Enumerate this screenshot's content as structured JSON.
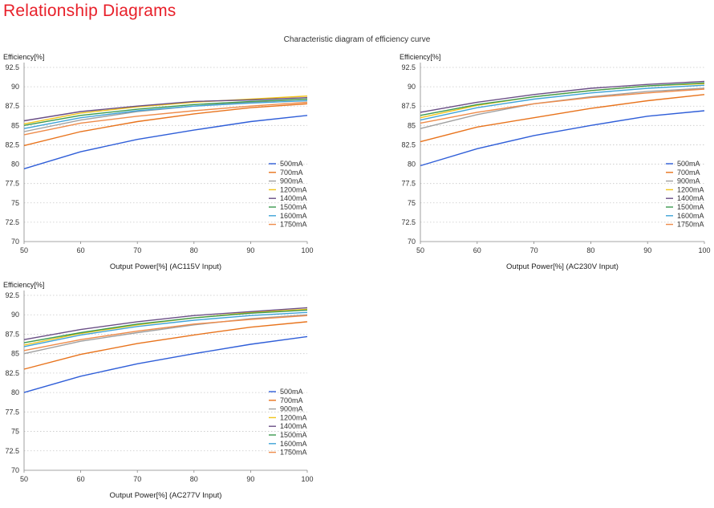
{
  "page": {
    "title": "Relationship Diagrams",
    "subtitle": "Characteristic diagram of efficiency curve"
  },
  "colors": {
    "500mA": "#2f5ed8",
    "700mA": "#e8731c",
    "900mA": "#a0a0a0",
    "1200mA": "#f0c419",
    "1400mA": "#6a4f86",
    "1500mA": "#3c9a4f",
    "1600mA": "#3fa3d7",
    "1750mA": "#ee8b4a"
  },
  "chart_data": [
    {
      "type": "line",
      "ylabel": "Efficiency[%]",
      "xlabel": "Output Power[%] (AC115V Input)",
      "xlim": [
        50,
        100
      ],
      "ylim": [
        70,
        92.5
      ],
      "xticks": [
        "50",
        "60",
        "70",
        "80",
        "90",
        "100"
      ],
      "yticks": [
        "70",
        "72.5",
        "75",
        "77.5",
        "80",
        "82.5",
        "85",
        "87.5",
        "90",
        "92.5"
      ],
      "grid": true,
      "legend": "bottom-right",
      "x": [
        50,
        60,
        70,
        80,
        90,
        100
      ],
      "series": [
        {
          "name": "500mA",
          "values": [
            79.4,
            81.6,
            83.2,
            84.4,
            85.5,
            86.3
          ]
        },
        {
          "name": "700mA",
          "values": [
            82.4,
            84.2,
            85.5,
            86.5,
            87.3,
            87.8
          ]
        },
        {
          "name": "900mA",
          "values": [
            84.2,
            85.7,
            86.8,
            87.5,
            88.0,
            88.4
          ]
        },
        {
          "name": "1200mA",
          "values": [
            85.2,
            86.6,
            87.4,
            88.0,
            88.4,
            88.8
          ]
        },
        {
          "name": "1400mA",
          "values": [
            85.6,
            86.8,
            87.5,
            88.1,
            88.3,
            88.6
          ]
        },
        {
          "name": "1500mA",
          "values": [
            85.0,
            86.3,
            87.1,
            87.7,
            88.1,
            88.4
          ]
        },
        {
          "name": "1600mA",
          "values": [
            84.6,
            86.0,
            86.9,
            87.5,
            87.9,
            88.2
          ]
        },
        {
          "name": "1750mA",
          "values": [
            83.8,
            85.3,
            86.2,
            86.9,
            87.5,
            88.0
          ]
        }
      ]
    },
    {
      "type": "line",
      "ylabel": "Efficiency[%]",
      "xlabel": "Output Power[%] (AC230V Input)",
      "xlim": [
        50,
        100
      ],
      "ylim": [
        70,
        92.5
      ],
      "xticks": [
        "50",
        "60",
        "70",
        "80",
        "90",
        "100"
      ],
      "yticks": [
        "70",
        "72.5",
        "75",
        "77.5",
        "80",
        "82.5",
        "85",
        "87.5",
        "90",
        "92.5"
      ],
      "grid": true,
      "legend": "bottom-right",
      "x": [
        50,
        60,
        70,
        80,
        90,
        100
      ],
      "series": [
        {
          "name": "500mA",
          "values": [
            79.8,
            82.0,
            83.7,
            85.0,
            86.2,
            86.9
          ]
        },
        {
          "name": "700mA",
          "values": [
            82.9,
            84.8,
            86.0,
            87.2,
            88.2,
            89.0
          ]
        },
        {
          "name": "900mA",
          "values": [
            84.6,
            86.4,
            87.8,
            88.7,
            89.4,
            89.8
          ]
        },
        {
          "name": "1200mA",
          "values": [
            86.0,
            87.6,
            88.7,
            89.5,
            90.1,
            90.4
          ]
        },
        {
          "name": "1400mA",
          "values": [
            86.7,
            88.0,
            89.0,
            89.8,
            90.3,
            90.7
          ]
        },
        {
          "name": "1500mA",
          "values": [
            86.3,
            87.7,
            88.7,
            89.5,
            90.1,
            90.5
          ]
        },
        {
          "name": "1600mA",
          "values": [
            85.7,
            87.3,
            88.4,
            89.2,
            89.8,
            90.2
          ]
        },
        {
          "name": "1750mA",
          "values": [
            85.3,
            86.7,
            87.8,
            88.6,
            89.2,
            89.7
          ]
        }
      ]
    },
    {
      "type": "line",
      "ylabel": "Efficiency[%]",
      "xlabel": "Output Power[%] (AC277V Input)",
      "xlim": [
        50,
        100
      ],
      "ylim": [
        70,
        92.5
      ],
      "xticks": [
        "50",
        "60",
        "70",
        "80",
        "90",
        "100"
      ],
      "yticks": [
        "70",
        "72.5",
        "75",
        "77.5",
        "80",
        "82.5",
        "85",
        "87.5",
        "90",
        "92.5"
      ],
      "grid": true,
      "legend": "bottom-right",
      "x": [
        50,
        60,
        70,
        80,
        90,
        100
      ],
      "series": [
        {
          "name": "500mA",
          "values": [
            80.0,
            82.1,
            83.7,
            85.0,
            86.2,
            87.2
          ]
        },
        {
          "name": "700mA",
          "values": [
            83.0,
            84.9,
            86.3,
            87.4,
            88.4,
            89.1
          ]
        },
        {
          "name": "900mA",
          "values": [
            85.0,
            86.6,
            87.7,
            88.7,
            89.5,
            90.0
          ]
        },
        {
          "name": "1200mA",
          "values": [
            86.1,
            87.6,
            88.7,
            89.6,
            90.3,
            90.7
          ]
        },
        {
          "name": "1400mA",
          "values": [
            86.8,
            88.1,
            89.1,
            89.9,
            90.4,
            90.9
          ]
        },
        {
          "name": "1500mA",
          "values": [
            86.4,
            87.7,
            88.8,
            89.6,
            90.2,
            90.6
          ]
        },
        {
          "name": "1600mA",
          "values": [
            85.9,
            87.4,
            88.5,
            89.3,
            89.9,
            90.3
          ]
        },
        {
          "name": "1750mA",
          "values": [
            85.4,
            86.8,
            87.9,
            88.8,
            89.4,
            89.9
          ]
        }
      ]
    }
  ]
}
